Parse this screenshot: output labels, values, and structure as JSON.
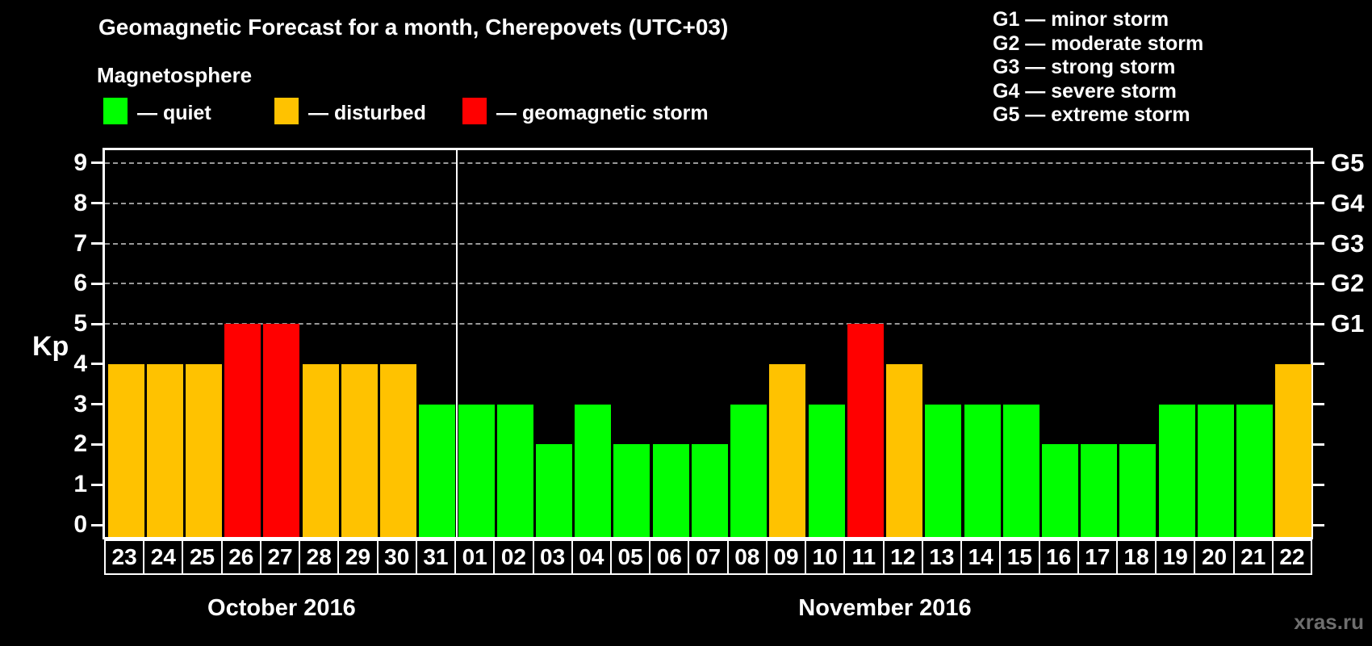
{
  "header": {
    "title": "Geomagnetic Forecast for a month, Cherepovets (UTC+03)",
    "subtitle": "Magnetosphere",
    "legend": {
      "items": [
        {
          "label": "— quiet",
          "status": "quiet",
          "color": "#00ff00"
        },
        {
          "label": "— disturbed",
          "status": "disturbed",
          "color": "#ffc200"
        },
        {
          "label": "— geomagnetic storm",
          "status": "storm",
          "color": "#ff0000"
        }
      ]
    }
  },
  "storm_scale": {
    "items": [
      {
        "label": "G1 — minor storm"
      },
      {
        "label": "G2 — moderate storm"
      },
      {
        "label": "G3 — strong storm"
      },
      {
        "label": "G4 — severe storm"
      },
      {
        "label": "G5 — extreme storm"
      }
    ]
  },
  "watermark": {
    "text": "xras.ru"
  },
  "chart_data": {
    "type": "bar",
    "title": "Geomagnetic Forecast for a month, Cherepovets (UTC+03)",
    "subtitle": "Magnetosphere",
    "xlabel": "",
    "ylabel": "Kp",
    "ylim": [
      0,
      9
    ],
    "grid": "dashed horizontal at Kp 5-9",
    "legend_position": "top",
    "yticks": [
      0,
      1,
      2,
      3,
      4,
      5,
      6,
      7,
      8,
      9
    ],
    "right_axis_labels": [
      {
        "kp": 5,
        "label": "G1"
      },
      {
        "kp": 6,
        "label": "G2"
      },
      {
        "kp": 7,
        "label": "G3"
      },
      {
        "kp": 8,
        "label": "G4"
      },
      {
        "kp": 9,
        "label": "G5"
      }
    ],
    "gridlines_at": [
      5,
      6,
      7,
      8,
      9
    ],
    "colors": {
      "quiet": "#00ff00",
      "disturbed": "#ffc200",
      "storm": "#ff0000"
    },
    "months": [
      {
        "label": "October 2016",
        "start_index": 0,
        "count": 9
      },
      {
        "label": "November 2016",
        "start_index": 9,
        "count": 22
      }
    ],
    "categories": [
      "23",
      "24",
      "25",
      "26",
      "27",
      "28",
      "29",
      "30",
      "31",
      "01",
      "02",
      "03",
      "04",
      "05",
      "06",
      "07",
      "08",
      "09",
      "10",
      "11",
      "12",
      "13",
      "14",
      "15",
      "16",
      "17",
      "18",
      "19",
      "20",
      "21",
      "22"
    ],
    "values": [
      4,
      4,
      4,
      5,
      5,
      4,
      4,
      4,
      3,
      3,
      3,
      2,
      3,
      2,
      2,
      2,
      3,
      4,
      3,
      5,
      4,
      3,
      3,
      3,
      2,
      2,
      2,
      3,
      3,
      3,
      4
    ],
    "statuses": [
      "disturbed",
      "disturbed",
      "disturbed",
      "storm",
      "storm",
      "disturbed",
      "disturbed",
      "disturbed",
      "quiet",
      "quiet",
      "quiet",
      "quiet",
      "quiet",
      "quiet",
      "quiet",
      "quiet",
      "quiet",
      "disturbed",
      "quiet",
      "storm",
      "disturbed",
      "quiet",
      "quiet",
      "quiet",
      "quiet",
      "quiet",
      "quiet",
      "quiet",
      "quiet",
      "quiet",
      "disturbed"
    ]
  }
}
